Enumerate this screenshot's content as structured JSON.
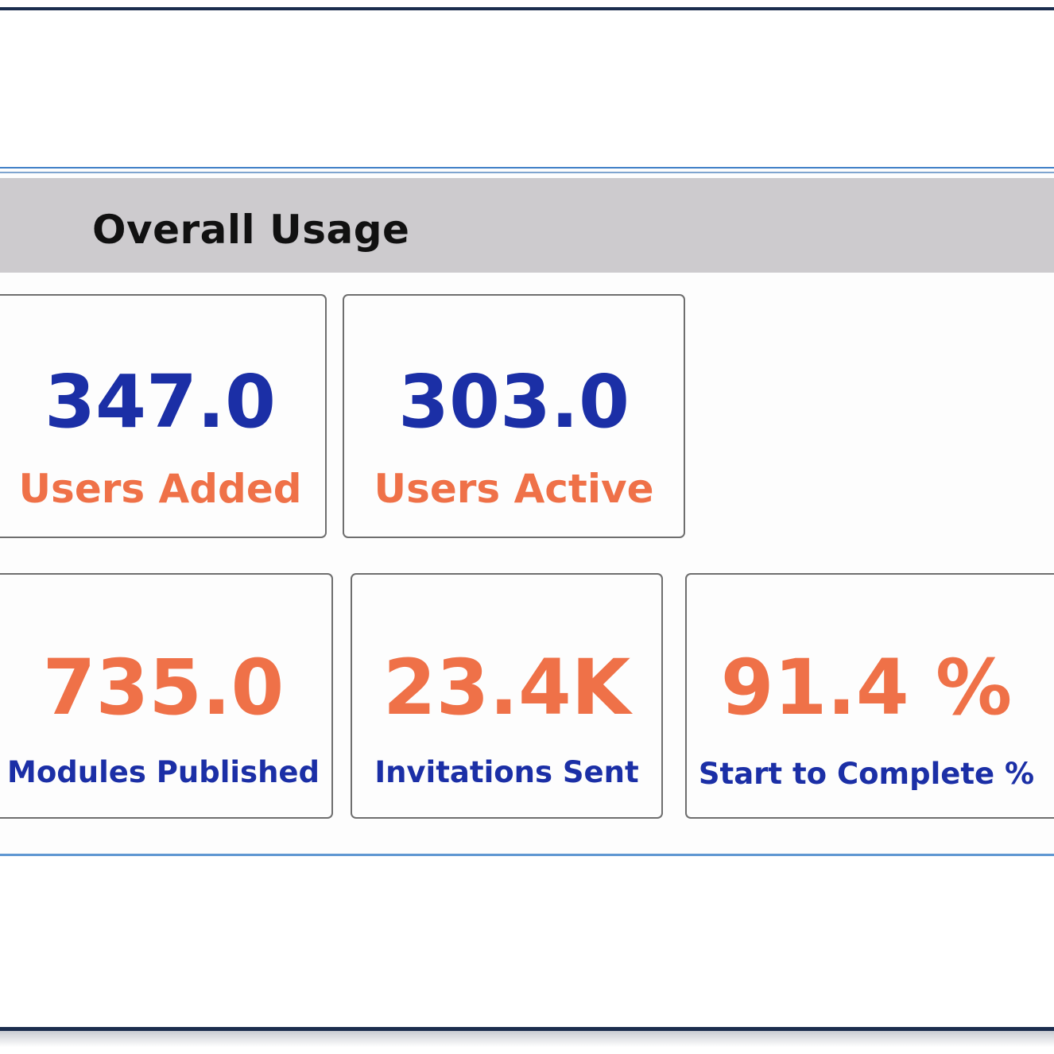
{
  "panel": {
    "title": "Overall Usage"
  },
  "cards": [
    {
      "value": "347.0",
      "label": "Users Added"
    },
    {
      "value": "303.0",
      "label": "Users Active"
    },
    {
      "value": "735.0",
      "label": "Modules Published"
    },
    {
      "value": "23.4K",
      "label": "Invitations Sent"
    },
    {
      "value": "91.4 %",
      "label": "Start to Complete %"
    }
  ],
  "colors": {
    "value_blue": "#1b2fa6",
    "accent_orange": "#ef7148",
    "header_band": "#cdcbce",
    "rule_dark": "#1b2d4e",
    "rule_blue": "#3f7fc7"
  }
}
